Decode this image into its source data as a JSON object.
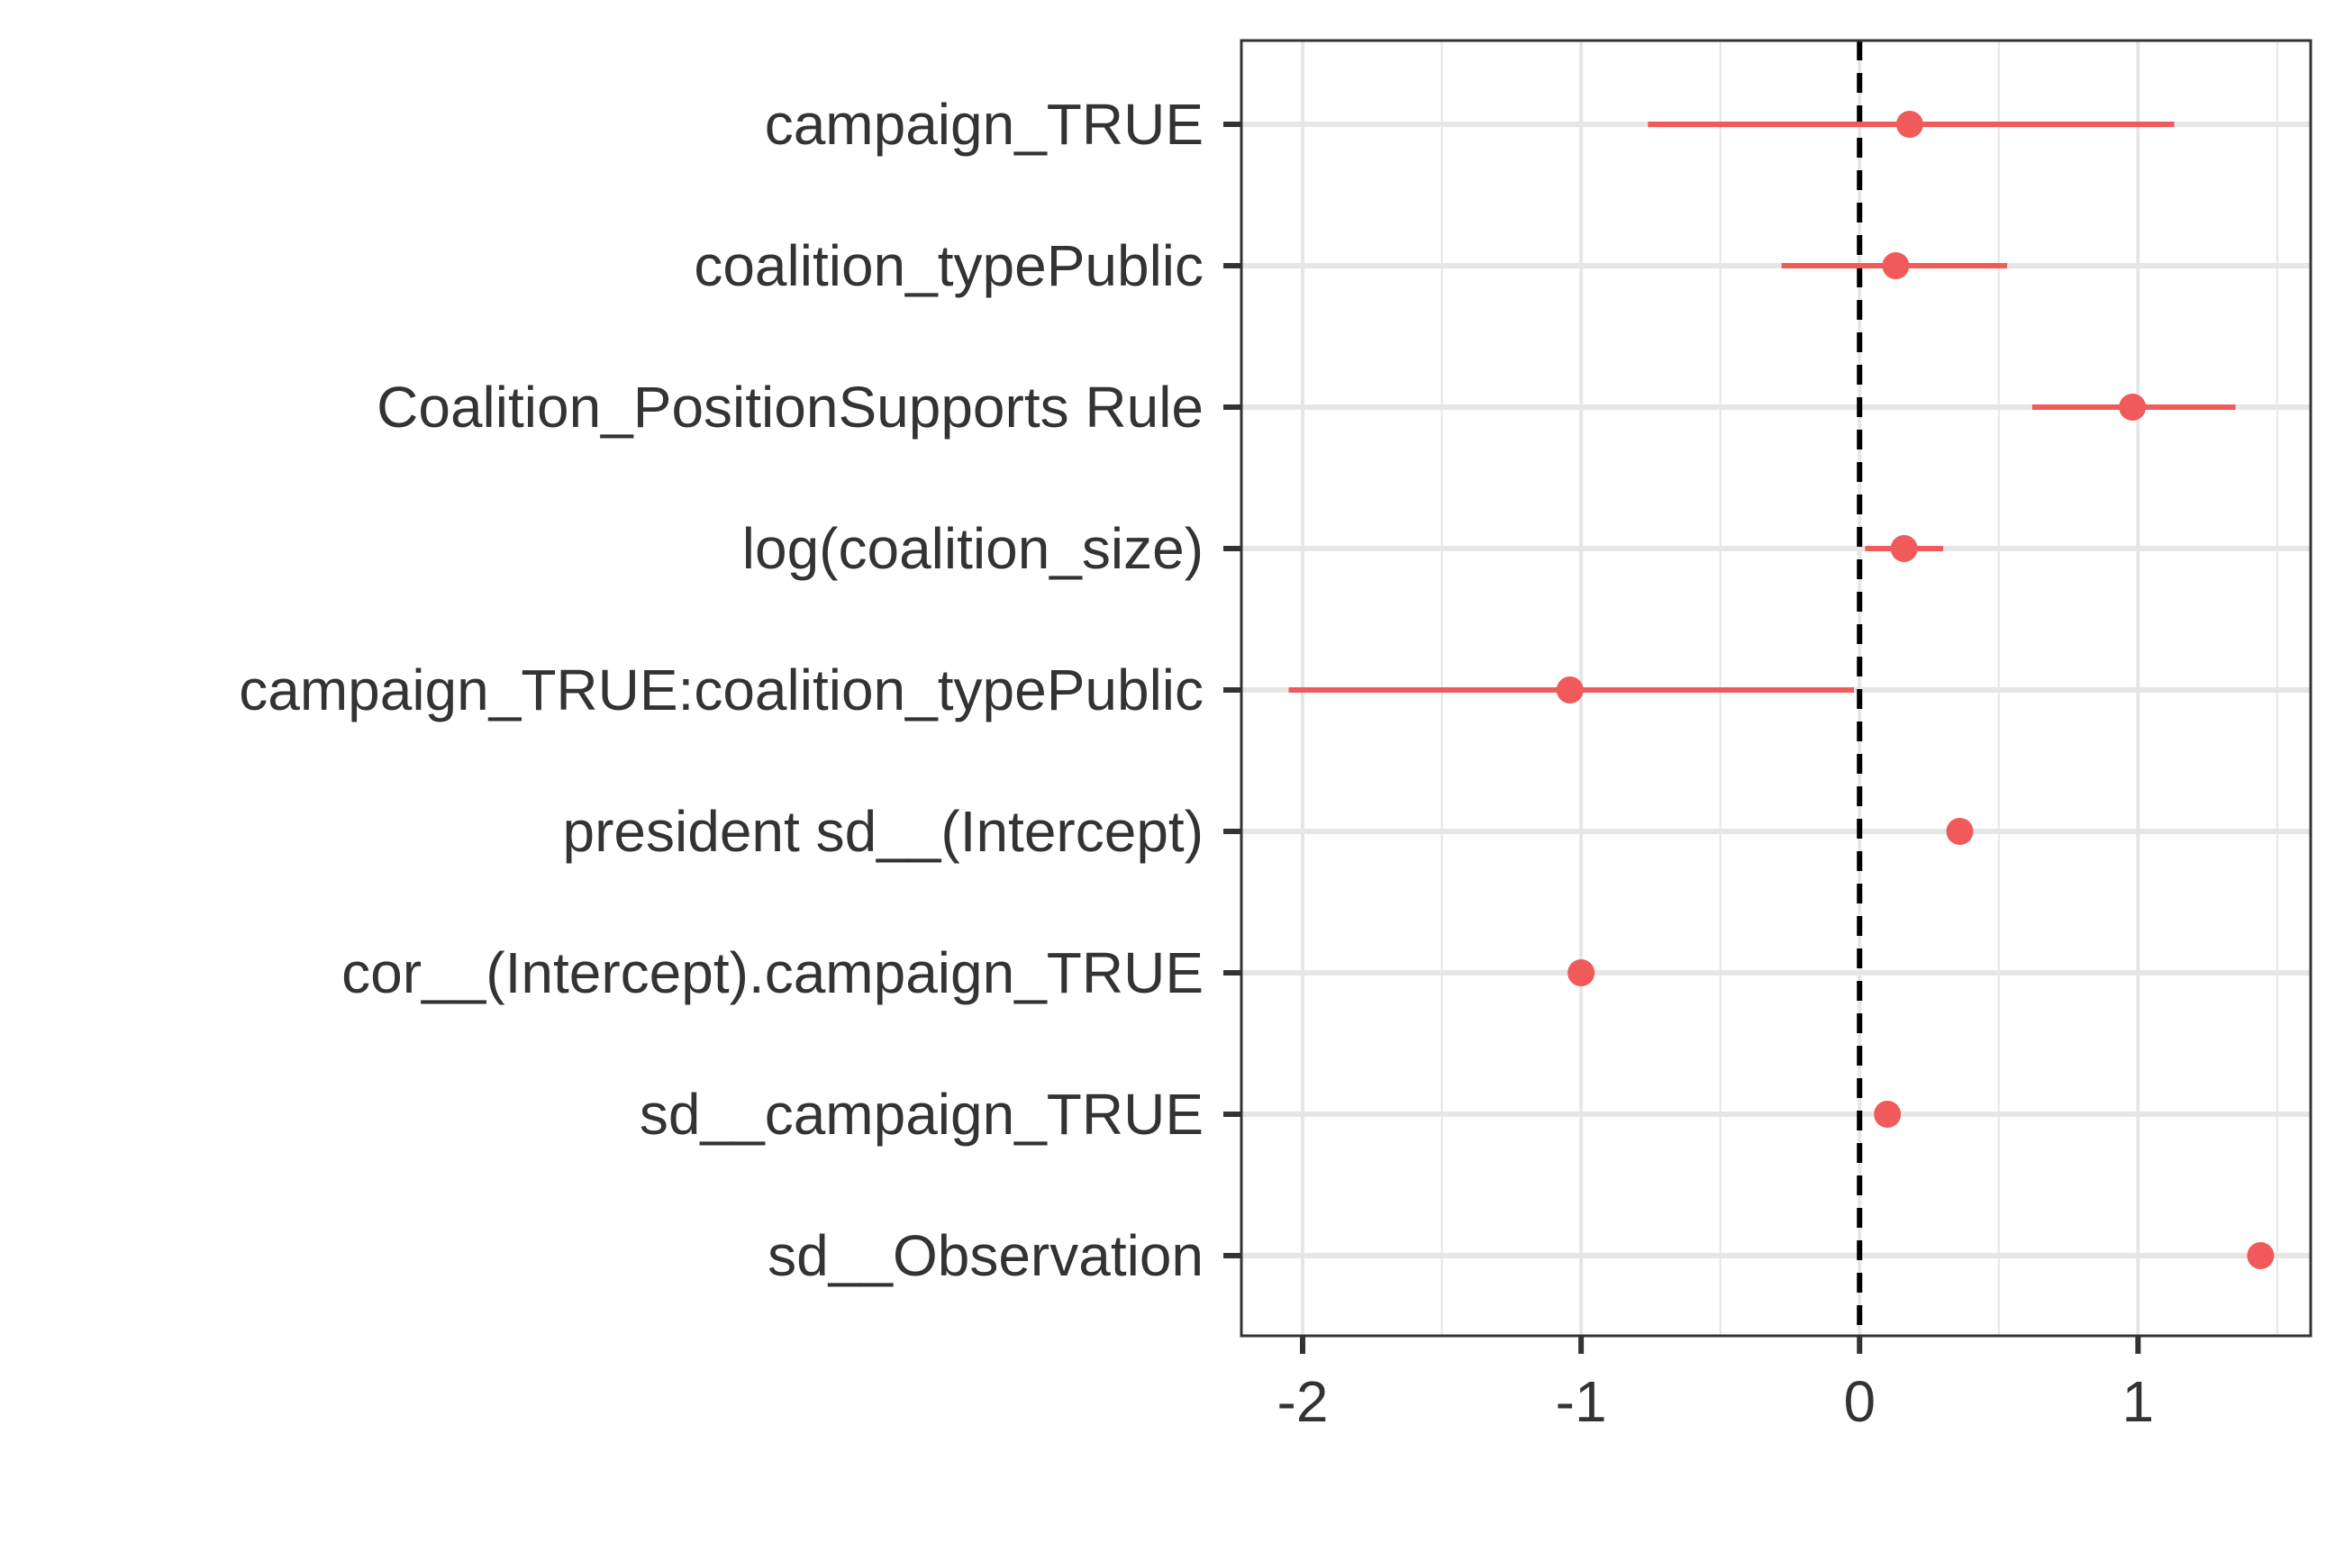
{
  "chart_data": {
    "type": "scatter",
    "title": "",
    "xlabel": "",
    "ylabel": "",
    "xlim": [
      -2.22,
      1.62
    ],
    "x_ticks": [
      -2,
      -1,
      0,
      1
    ],
    "x_tick_labels": [
      "-2",
      "-1",
      "0",
      "1"
    ],
    "x_minor_ticks": [
      -1.5,
      -0.5,
      0.5,
      1.5
    ],
    "reference_line": 0,
    "grid": true,
    "legend": "none",
    "colors": {
      "point": "#f05a5a",
      "reference_line": "#000000",
      "grid": "#e6e6e6",
      "axis": "#333333"
    },
    "terms": [
      {
        "label": "campaign_TRUE",
        "estimate": 0.18,
        "low": -0.76,
        "high": 1.13
      },
      {
        "label": "coalition_typePublic",
        "estimate": 0.13,
        "low": -0.28,
        "high": 0.53
      },
      {
        "label": "Coalition_PositionSupports Rule",
        "estimate": 0.98,
        "low": 0.62,
        "high": 1.35
      },
      {
        "label": "log(coalition_size)",
        "estimate": 0.16,
        "low": 0.02,
        "high": 0.3
      },
      {
        "label": "campaign_TRUE:coalition_typePublic",
        "estimate": -1.04,
        "low": -2.05,
        "high": -0.02
      },
      {
        "label": "president sd__(Intercept)",
        "estimate": 0.36,
        "low": null,
        "high": null
      },
      {
        "label": "cor__(Intercept).campaign_TRUE",
        "estimate": -1.0,
        "low": null,
        "high": null
      },
      {
        "label": "sd__campaign_TRUE",
        "estimate": 0.1,
        "low": null,
        "high": null
      },
      {
        "label": "sd__Observation",
        "estimate": 1.44,
        "low": null,
        "high": null
      }
    ]
  }
}
